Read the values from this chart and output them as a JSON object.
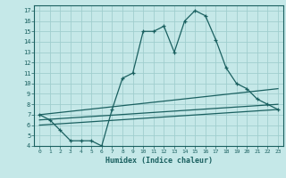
{
  "xlabel": "Humidex (Indice chaleur)",
  "background_color": "#c5e8e8",
  "grid_color": "#a0cece",
  "line_color": "#1a6060",
  "xlim": [
    -0.5,
    23.5
  ],
  "ylim": [
    4,
    17.5
  ],
  "xticks": [
    0,
    1,
    2,
    3,
    4,
    5,
    6,
    7,
    8,
    9,
    10,
    11,
    12,
    13,
    14,
    15,
    16,
    17,
    18,
    19,
    20,
    21,
    22,
    23
  ],
  "yticks": [
    4,
    5,
    6,
    7,
    8,
    9,
    10,
    11,
    12,
    13,
    14,
    15,
    16,
    17
  ],
  "line1_x": [
    0,
    1,
    2,
    3,
    4,
    5,
    6,
    7,
    8,
    9,
    10,
    11,
    12,
    13,
    14,
    15,
    16,
    17,
    18,
    19,
    20,
    21,
    22,
    23
  ],
  "line1_y": [
    7.0,
    6.5,
    5.5,
    4.5,
    4.5,
    4.5,
    4.0,
    7.5,
    10.5,
    11.0,
    15.0,
    15.0,
    15.5,
    13.0,
    16.0,
    17.0,
    16.5,
    14.2,
    11.5,
    10.0,
    9.5,
    8.5,
    8.0,
    7.5
  ],
  "line2_x": [
    0,
    23
  ],
  "line2_y": [
    7.0,
    9.5
  ],
  "line3_x": [
    0,
    23
  ],
  "line3_y": [
    6.5,
    8.0
  ],
  "line4_x": [
    0,
    23
  ],
  "line4_y": [
    6.0,
    7.5
  ]
}
